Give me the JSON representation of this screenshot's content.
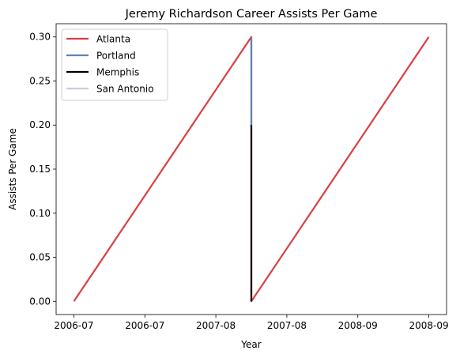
{
  "chart_data": {
    "type": "line",
    "title": "Jeremy Richardson Career Assists Per Game",
    "xlabel": "Year",
    "ylabel": "Assists Per Game",
    "x_tick_labels": [
      "2006-07",
      "2006-07",
      "2007-08",
      "2007-08",
      "2008-09",
      "2008-09"
    ],
    "y_tick_labels": [
      "0.00",
      "0.05",
      "0.10",
      "0.15",
      "0.20",
      "0.25",
      "0.30"
    ],
    "y_ticks": [
      0.0,
      0.05,
      0.1,
      0.15,
      0.2,
      0.25,
      0.3
    ],
    "xlim": [
      -0.1,
      2.1
    ],
    "ylim": [
      -0.015,
      0.315
    ],
    "grid": false,
    "legend": "upper left",
    "series": [
      {
        "name": "Atlanta",
        "color": "#d94040",
        "points": [
          {
            "x": 0,
            "y": 0.0
          },
          {
            "x": 1,
            "y": 0.3
          },
          {
            "x": 1,
            "y": 0.0
          },
          {
            "x": 2,
            "y": 0.3
          }
        ]
      },
      {
        "name": "Portland",
        "color": "#5b84b1",
        "points": [
          {
            "x": 1,
            "y": 0.3
          },
          {
            "x": 1,
            "y": 0.2
          }
        ]
      },
      {
        "name": "Memphis",
        "color": "#000000",
        "points": [
          {
            "x": 1,
            "y": 0.2
          },
          {
            "x": 1,
            "y": 0.0
          }
        ]
      },
      {
        "name": "San Antonio",
        "color": "#c7ced8",
        "points": []
      }
    ]
  }
}
